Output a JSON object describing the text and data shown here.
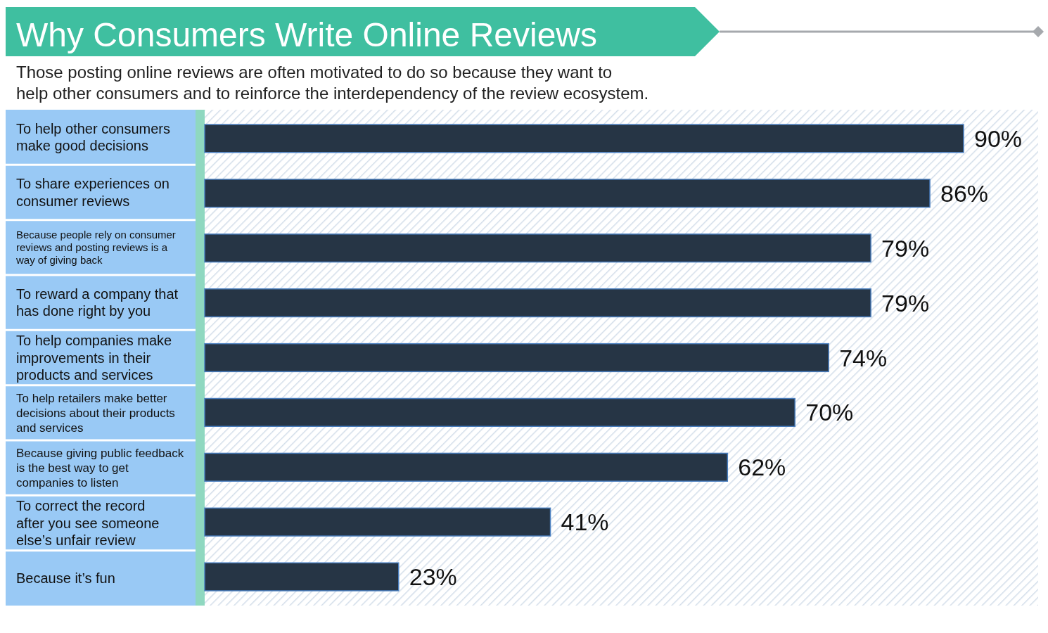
{
  "chart_data": {
    "type": "bar",
    "orientation": "horizontal",
    "title": "Why Consumers Write Online Reviews",
    "subtitle": "Those posting online reviews are often motivated to do so because they want to help other consumers and to reinforce the interdependency of the review ecosystem.",
    "categories": [
      "To help other consumers make good decisions",
      "To share experiences on consumer reviews",
      "Because people rely on consumer reviews and posting reviews is a way of giving back",
      "To reward a company that has done right by you",
      "To help companies make improvements in their products and services",
      "To help retailers make better decisions about their products and services",
      "Because giving public feedback is the best way to get companies to listen",
      "To correct the record after you see someone else’s unfair review",
      "Because it’s fun"
    ],
    "values": [
      90,
      86,
      79,
      79,
      74,
      70,
      62,
      41,
      23
    ],
    "value_labels": [
      "90%",
      "86%",
      "79%",
      "79%",
      "74%",
      "70%",
      "62%",
      "41%",
      "23%"
    ],
    "color": "#263545"
  }
}
